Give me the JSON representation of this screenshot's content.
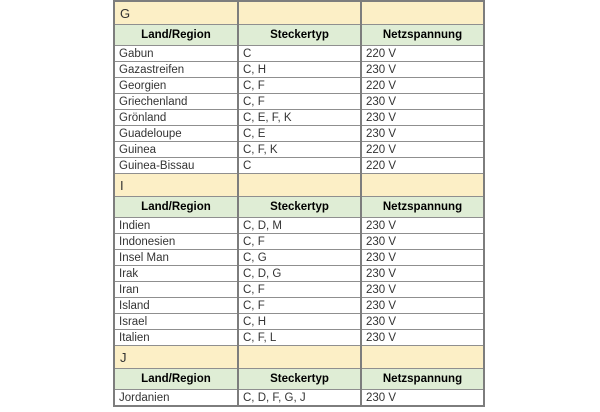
{
  "page": {
    "background": "#ffffff"
  },
  "table": {
    "columns": [
      "Land/Region",
      "Steckertyp",
      "Netzspannung"
    ],
    "colors": {
      "section_bg": "#fcefc6",
      "header_bg": "#dfedd5",
      "border": "#7d7d7d",
      "row_border": "#8f8f8f",
      "text": "#333333"
    },
    "sections": [
      {
        "letter": "G",
        "rows": [
          {
            "land": "Gabun",
            "steckertyp": "C",
            "netzspannung": "220 V"
          },
          {
            "land": "Gazastreifen",
            "steckertyp": "C, H",
            "netzspannung": "230 V"
          },
          {
            "land": "Georgien",
            "steckertyp": "C, F",
            "netzspannung": "220 V"
          },
          {
            "land": "Griechenland",
            "steckertyp": "C, F",
            "netzspannung": "230 V"
          },
          {
            "land": "Grönland",
            "steckertyp": "C, E, F, K",
            "netzspannung": "230 V"
          },
          {
            "land": "Guadeloupe",
            "steckertyp": "C, E",
            "netzspannung": "230 V"
          },
          {
            "land": "Guinea",
            "steckertyp": "C, F, K",
            "netzspannung": "220 V"
          },
          {
            "land": "Guinea-Bissau",
            "steckertyp": "C",
            "netzspannung": "220 V"
          }
        ]
      },
      {
        "letter": "I",
        "rows": [
          {
            "land": "Indien",
            "steckertyp": "C, D, M",
            "netzspannung": "230 V"
          },
          {
            "land": "Indonesien",
            "steckertyp": "C, F",
            "netzspannung": "230 V"
          },
          {
            "land": "Insel Man",
            "steckertyp": "C, G",
            "netzspannung": "230 V"
          },
          {
            "land": "Irak",
            "steckertyp": "C, D, G",
            "netzspannung": "230 V"
          },
          {
            "land": "Iran",
            "steckertyp": "C, F",
            "netzspannung": "230 V"
          },
          {
            "land": "Island",
            "steckertyp": "C, F",
            "netzspannung": "230 V"
          },
          {
            "land": "Israel",
            "steckertyp": "C, H",
            "netzspannung": "230 V"
          },
          {
            "land": "Italien",
            "steckertyp": "C, F, L",
            "netzspannung": "230 V"
          }
        ]
      },
      {
        "letter": "J",
        "rows": [
          {
            "land": "Jordanien",
            "steckertyp": "C, D, F, G, J",
            "netzspannung": "230 V"
          }
        ]
      }
    ]
  }
}
